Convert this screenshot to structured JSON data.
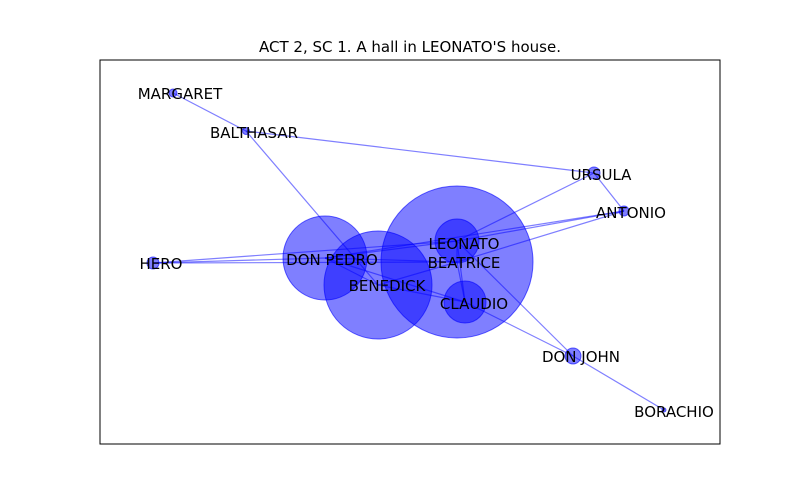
{
  "figure": {
    "title": "ACT 2, SC 1. A hall in LEONATO'S house.",
    "colors": {
      "node_fill": "#0000ff",
      "node_fill_opacity": 0.5,
      "edge": "#0000ff",
      "edge_opacity": 0.5,
      "frame": "#000000"
    }
  },
  "graph": {
    "nodes": [
      {
        "id": "MARGARET",
        "label": "MARGARET",
        "size": 1
      },
      {
        "id": "BALTHASAR",
        "label": "BALTHASAR",
        "size": 1
      },
      {
        "id": "URSULA",
        "label": "URSULA",
        "size": 2
      },
      {
        "id": "ANTONIO",
        "label": "ANTONIO",
        "size": 2
      },
      {
        "id": "HERO",
        "label": "HERO",
        "size": 2
      },
      {
        "id": "DON PEDRO",
        "label": "DON PEDRO",
        "size": 25
      },
      {
        "id": "LEONATO",
        "label": "LEONATO",
        "size": 9
      },
      {
        "id": "BEATRICE",
        "label": "BEATRICE",
        "size": 44
      },
      {
        "id": "BENEDICK",
        "label": "BENEDICK",
        "size": 29
      },
      {
        "id": "CLAUDIO",
        "label": "CLAUDIO",
        "size": 8
      },
      {
        "id": "DON JOHN",
        "label": "DON JOHN",
        "size": 3
      },
      {
        "id": "BORACHIO",
        "label": "BORACHIO",
        "size": 0.5
      }
    ],
    "edges": [
      [
        "MARGARET",
        "BALTHASAR"
      ],
      [
        "BALTHASAR",
        "URSULA"
      ],
      [
        "BALTHASAR",
        "BENEDICK"
      ],
      [
        "URSULA",
        "ANTONIO"
      ],
      [
        "URSULA",
        "LEONATO"
      ],
      [
        "ANTONIO",
        "DON PEDRO"
      ],
      [
        "ANTONIO",
        "LEONATO"
      ],
      [
        "ANTONIO",
        "BEATRICE"
      ],
      [
        "HERO",
        "DON PEDRO"
      ],
      [
        "HERO",
        "LEONATO"
      ],
      [
        "HERO",
        "BEATRICE"
      ],
      [
        "DON PEDRO",
        "LEONATO"
      ],
      [
        "DON PEDRO",
        "BEATRICE"
      ],
      [
        "DON PEDRO",
        "BENEDICK"
      ],
      [
        "DON PEDRO",
        "CLAUDIO"
      ],
      [
        "LEONATO",
        "BEATRICE"
      ],
      [
        "LEONATO",
        "CLAUDIO"
      ],
      [
        "LEONATO",
        "DON JOHN"
      ],
      [
        "BEATRICE",
        "BENEDICK"
      ],
      [
        "BEATRICE",
        "CLAUDIO"
      ],
      [
        "BENEDICK",
        "CLAUDIO"
      ],
      [
        "CLAUDIO",
        "DON JOHN"
      ],
      [
        "DON JOHN",
        "BORACHIO"
      ]
    ]
  }
}
